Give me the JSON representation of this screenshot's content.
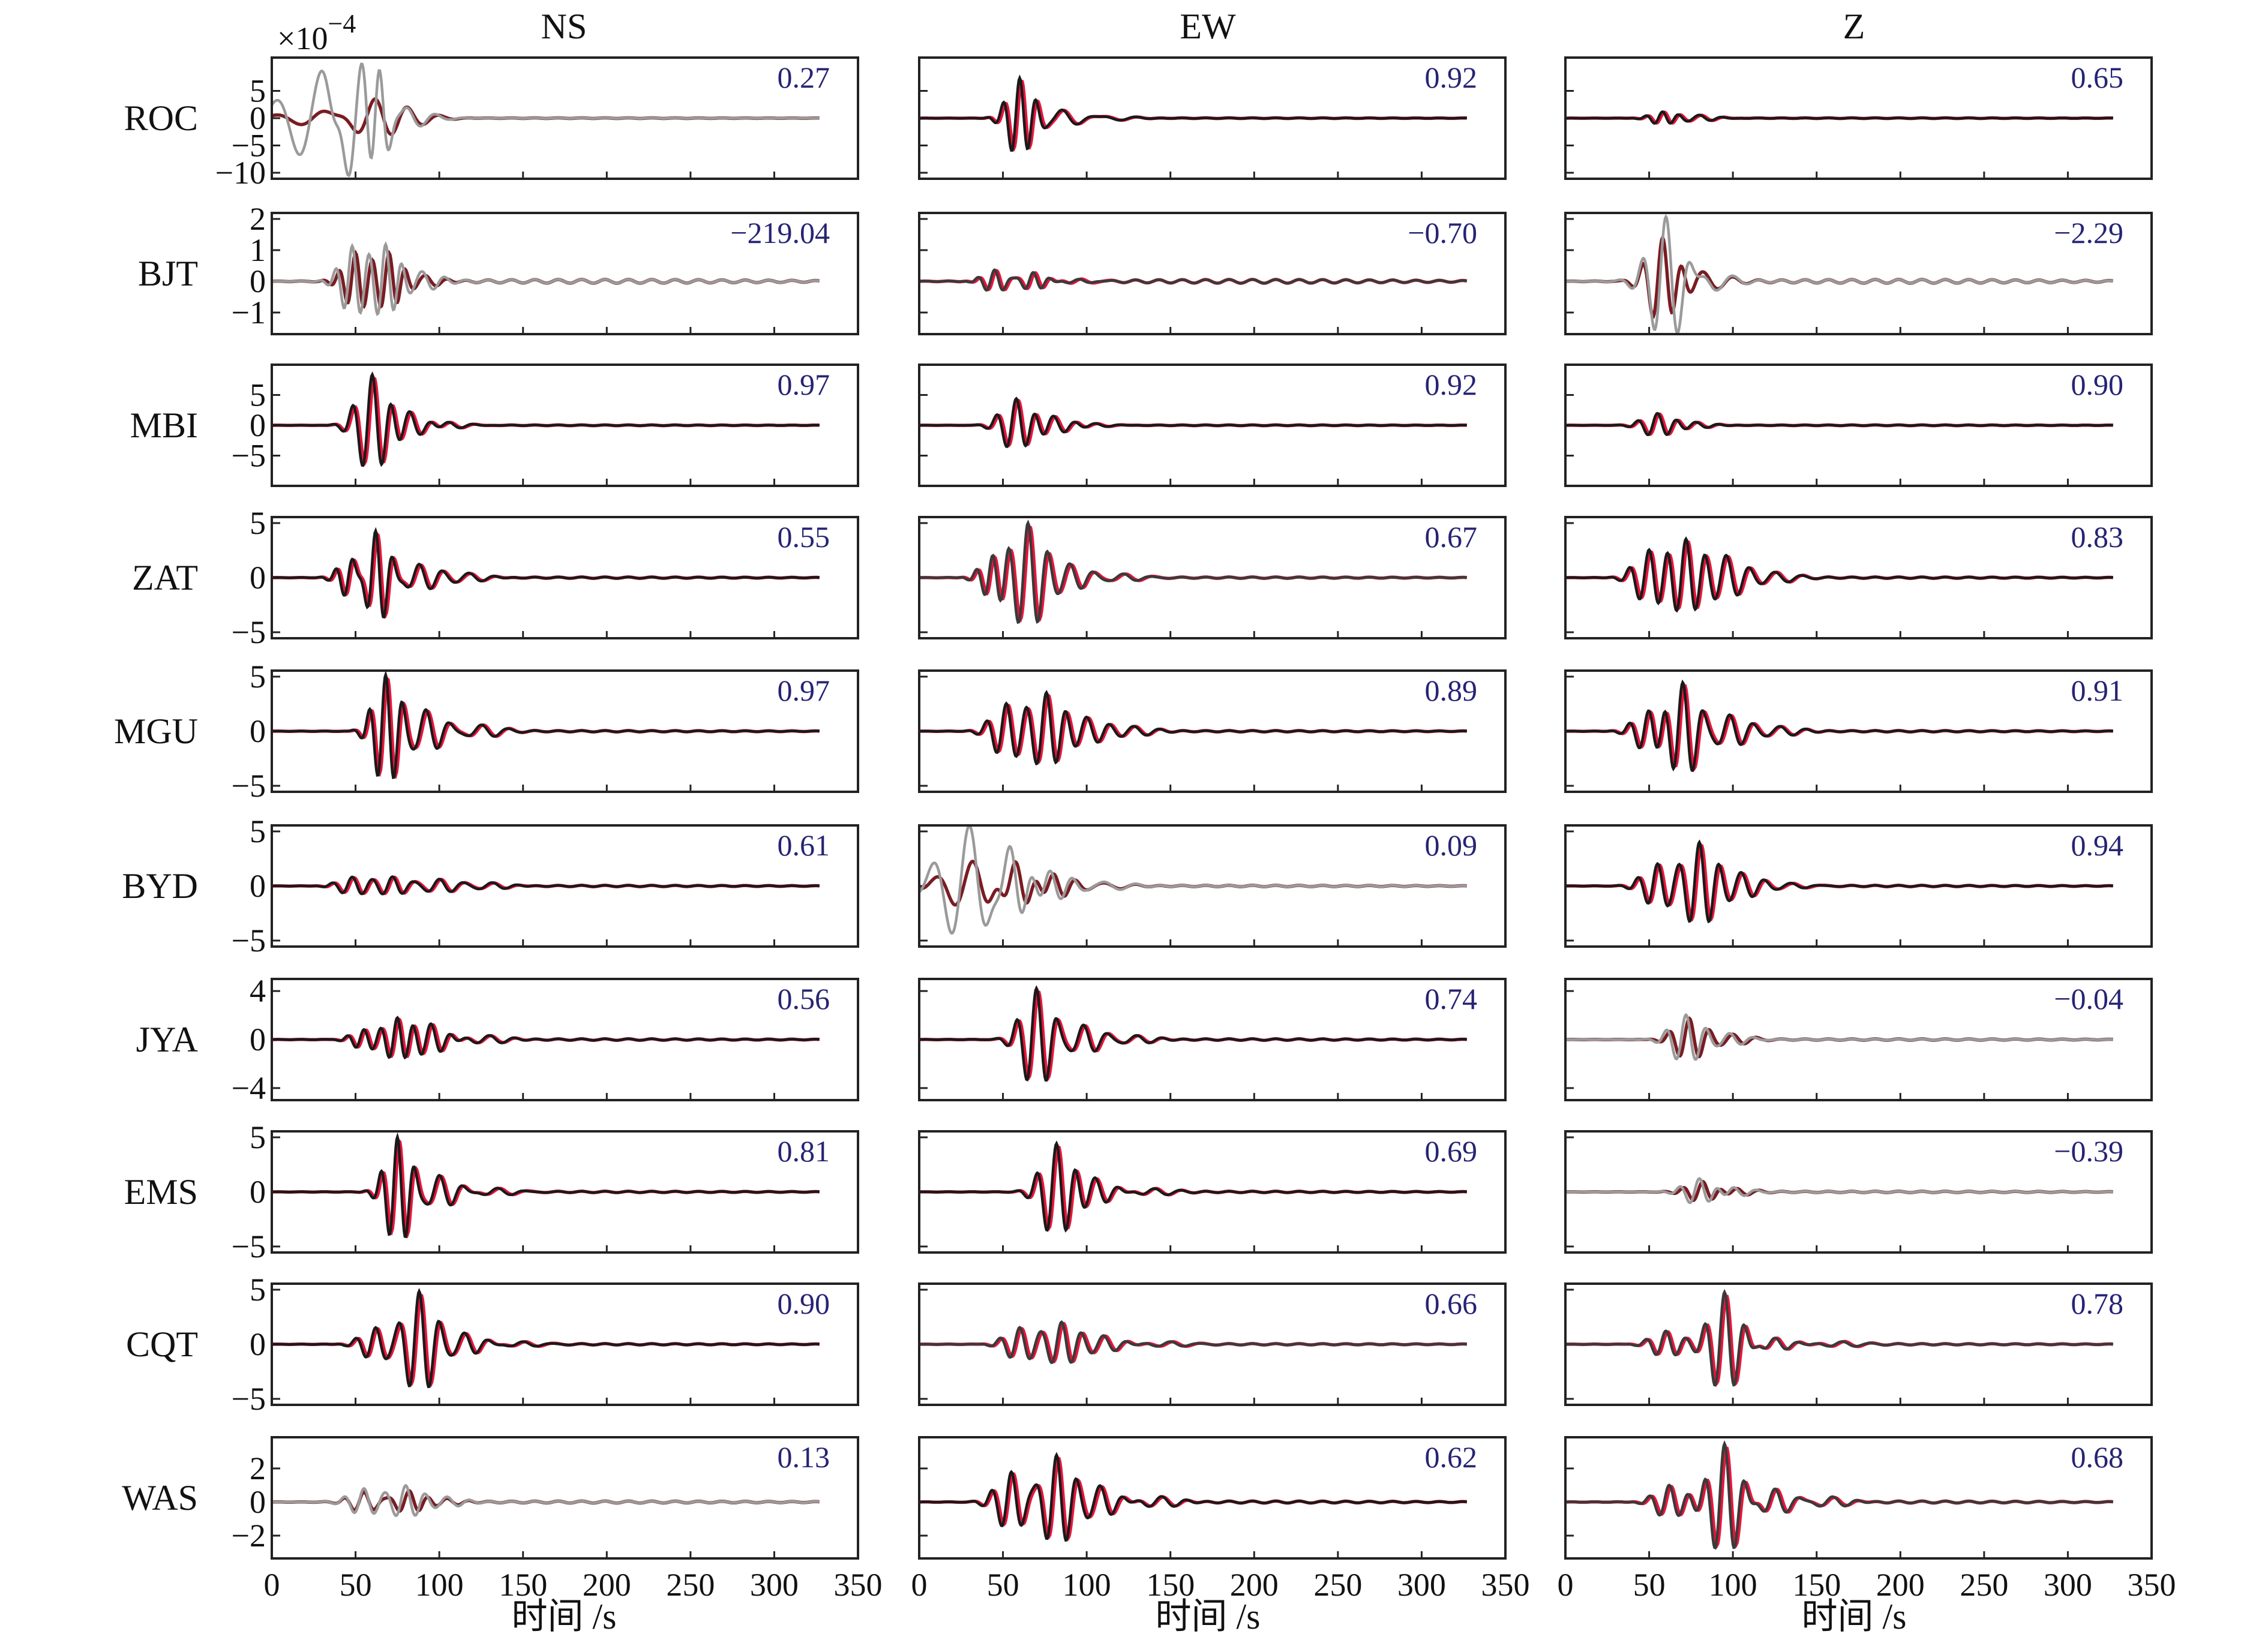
{
  "chart_data": {
    "type": "line",
    "columns": [
      "NS",
      "EW",
      "Z"
    ],
    "stations": [
      "ROC",
      "BJT",
      "MBI",
      "ZAT",
      "MGU",
      "BYD",
      "JYA",
      "EMS",
      "CQT",
      "WAS"
    ],
    "scale_factor": {
      "base": "×10",
      "exponent": "−4"
    },
    "xlabel": "时间 /s",
    "xlim": [
      0,
      350
    ],
    "xticks": [
      "0",
      "50",
      "100",
      "150",
      "200",
      "250",
      "300",
      "350"
    ],
    "x_end": 327,
    "grid": false,
    "rows": [
      {
        "station": "ROC",
        "ylim": [
          -10,
          10
        ],
        "yticks": [
          {
            "v": 5,
            "t": "5"
          },
          {
            "v": 0,
            "t": "0"
          },
          {
            "v": -5,
            "t": "−5"
          },
          {
            "v": -10,
            "t": "−10"
          }
        ]
      },
      {
        "station": "BJT",
        "ylim": [
          -1.5,
          2
        ],
        "yticks": [
          {
            "v": 2,
            "t": "2"
          },
          {
            "v": 1,
            "t": "1"
          },
          {
            "v": 0,
            "t": "0"
          },
          {
            "v": -1,
            "t": "−1"
          }
        ]
      },
      {
        "station": "MBI",
        "ylim": [
          -9,
          9
        ],
        "yticks": [
          {
            "v": 5,
            "t": "5"
          },
          {
            "v": 0,
            "t": "0"
          },
          {
            "v": -5,
            "t": "−5"
          }
        ]
      },
      {
        "station": "ZAT",
        "ylim": [
          -5,
          5
        ],
        "yticks": [
          {
            "v": 5,
            "t": "5"
          },
          {
            "v": 0,
            "t": "0"
          },
          {
            "v": -5,
            "t": "−5"
          }
        ]
      },
      {
        "station": "MGU",
        "ylim": [
          -5,
          5
        ],
        "yticks": [
          {
            "v": 5,
            "t": "5"
          },
          {
            "v": 0,
            "t": "0"
          },
          {
            "v": -5,
            "t": "−5"
          }
        ]
      },
      {
        "station": "BYD",
        "ylim": [
          -5,
          5
        ],
        "yticks": [
          {
            "v": 5,
            "t": "5"
          },
          {
            "v": 0,
            "t": "0"
          },
          {
            "v": -5,
            "t": "−5"
          }
        ]
      },
      {
        "station": "JYA",
        "ylim": [
          -4.5,
          4.5
        ],
        "yticks": [
          {
            "v": 4,
            "t": "4"
          },
          {
            "v": 0,
            "t": "0"
          },
          {
            "v": -4,
            "t": "−4"
          }
        ]
      },
      {
        "station": "EMS",
        "ylim": [
          -5,
          5
        ],
        "yticks": [
          {
            "v": 5,
            "t": "5"
          },
          {
            "v": 0,
            "t": "0"
          },
          {
            "v": -5,
            "t": "−5"
          }
        ]
      },
      {
        "station": "CQT",
        "ylim": [
          -5,
          5
        ],
        "yticks": [
          {
            "v": 5,
            "t": "5"
          },
          {
            "v": 0,
            "t": "0"
          },
          {
            "v": -5,
            "t": "−5"
          }
        ]
      },
      {
        "station": "WAS",
        "ylim": [
          -3,
          3.5
        ],
        "yticks": [
          {
            "v": 2,
            "t": "2"
          },
          {
            "v": 0,
            "t": "0"
          },
          {
            "v": -2,
            "t": "−2"
          }
        ]
      }
    ],
    "correlation_values": [
      [
        "0.27",
        "0.92",
        "0.65"
      ],
      [
        "−219.04",
        "−0.70",
        "−2.29"
      ],
      [
        "0.97",
        "0.92",
        "0.90"
      ],
      [
        "0.55",
        "0.67",
        "0.83"
      ],
      [
        "0.97",
        "0.89",
        "0.91"
      ],
      [
        "0.61",
        "0.09",
        "0.94"
      ],
      [
        "0.56",
        "0.74",
        "−0.04"
      ],
      [
        "0.81",
        "0.69",
        "−0.39"
      ],
      [
        "0.90",
        "0.66",
        "0.78"
      ],
      [
        "0.13",
        "0.62",
        "0.68"
      ]
    ],
    "waveforms": [
      [
        {
          "fit": "poor",
          "syn": [
            [
              30,
              8.5,
              28
            ],
            [
              52,
              7.5,
              12
            ],
            [
              60,
              -7,
              10
            ],
            [
              80,
              2,
              18
            ]
          ],
          "obs": [
            [
              32,
              1.5,
              30
            ],
            [
              62,
              2.5,
              20
            ],
            [
              80,
              1.2,
              20
            ]
          ]
        },
        {
          "fit": "good",
          "syn": [
            [
              60,
              7.5,
              10
            ],
            [
              85,
              1.5,
              18
            ],
            [
              110,
              0.5,
              20
            ]
          ]
        },
        {
          "fit": "good",
          "syn": [
            [
              58,
              1.2,
              10
            ],
            [
              80,
              0.6,
              14
            ]
          ]
        }
      ],
      [
        {
          "fit": "poor",
          "syn": [
            [
              48,
              1.1,
              10
            ],
            [
              68,
              1.2,
              10
            ],
            [
              90,
              0.3,
              14
            ]
          ],
          "obs": [
            [
              50,
              0.9,
              10
            ],
            [
              70,
              0.9,
              10
            ],
            [
              92,
              0.2,
              14
            ]
          ]
        },
        {
          "fit": "medium",
          "syn": [
            [
              45,
              0.35,
              10
            ],
            [
              68,
              0.3,
              10
            ],
            [
              95,
              0.1,
              14
            ]
          ]
        },
        {
          "fit": "poor",
          "syn": [
            [
              60,
              1.9,
              14
            ],
            [
              80,
              0.4,
              20
            ]
          ],
          "obs": [
            [
              58,
              1.4,
              12
            ],
            [
              82,
              0.3,
              18
            ]
          ]
        }
      ],
      [
        {
          "fit": "good",
          "syn": [
            [
              60,
              8.5,
              12
            ],
            [
              82,
              2.2,
              14
            ],
            [
              105,
              0.6,
              16
            ]
          ]
        },
        {
          "fit": "good",
          "syn": [
            [
              58,
              4.5,
              12
            ],
            [
              80,
              1.5,
              14
            ],
            [
              105,
              0.3,
              16
            ]
          ]
        },
        {
          "fit": "good",
          "syn": [
            [
              55,
              2.0,
              12
            ],
            [
              78,
              0.5,
              14
            ]
          ]
        }
      ],
      [
        {
          "fit": "good",
          "syn": [
            [
              48,
              2.2,
              10
            ],
            [
              62,
              4.5,
              10
            ],
            [
              88,
              1.2,
              14
            ],
            [
              118,
              0.4,
              16
            ]
          ]
        },
        {
          "fit": "medium",
          "syn": [
            [
              44,
              2.0,
              10
            ],
            [
              65,
              5.0,
              12
            ],
            [
              90,
              1.2,
              14
            ],
            [
              122,
              0.4,
              16
            ]
          ]
        },
        {
          "fit": "good",
          "syn": [
            [
              50,
              2.5,
              12
            ],
            [
              72,
              3.5,
              12
            ],
            [
              96,
              2.0,
              14
            ],
            [
              125,
              0.5,
              16
            ]
          ]
        }
      ],
      [
        {
          "fit": "good",
          "syn": [
            [
              68,
              5.2,
              10
            ],
            [
              92,
              2.0,
              14
            ],
            [
              125,
              0.6,
              16
            ]
          ]
        },
        {
          "fit": "good",
          "syn": [
            [
              52,
              2.5,
              12
            ],
            [
              76,
              3.5,
              12
            ],
            [
              100,
              1.2,
              14
            ],
            [
              128,
              0.4,
              16
            ]
          ]
        },
        {
          "fit": "good",
          "syn": [
            [
              50,
              2.0,
              12
            ],
            [
              70,
              4.5,
              12
            ],
            [
              98,
              1.5,
              14
            ],
            [
              128,
              0.4,
              16
            ]
          ]
        }
      ],
      [
        {
          "fit": "good",
          "syn": [
            [
              48,
              0.8,
              12
            ],
            [
              72,
              0.8,
              12
            ],
            [
              100,
              0.6,
              14
            ],
            [
              132,
              0.3,
              16
            ]
          ]
        },
        {
          "fit": "poor",
          "syn": [
            [
              30,
              5.5,
              22
            ],
            [
              55,
              2.5,
              14
            ],
            [
              78,
              1.5,
              14
            ],
            [
              110,
              0.4,
              20
            ]
          ],
          "obs": [
            [
              32,
              2.2,
              22
            ],
            [
              58,
              2.0,
              14
            ],
            [
              80,
              1.3,
              14
            ],
            [
              110,
              0.3,
              20
            ]
          ]
        },
        {
          "fit": "good",
          "syn": [
            [
              55,
              2.0,
              12
            ],
            [
              80,
              4.0,
              12
            ],
            [
              105,
              1.2,
              14
            ],
            [
              135,
              0.3,
              16
            ]
          ]
        }
      ],
      [
        {
          "fit": "good",
          "syn": [
            [
              55,
              0.8,
              10
            ],
            [
              75,
              1.8,
              10
            ],
            [
              95,
              1.3,
              12
            ],
            [
              130,
              0.3,
              16
            ]
          ]
        },
        {
          "fit": "good",
          "syn": [
            [
              70,
              4.2,
              12
            ],
            [
              98,
              1.2,
              14
            ],
            [
              130,
              0.3,
              16
            ]
          ]
        },
        {
          "fit": "poor",
          "syn": [
            [
              72,
              2.0,
              12
            ],
            [
              98,
              0.5,
              14
            ]
          ],
          "obs": [
            [
              74,
              1.7,
              12
            ],
            [
              100,
              0.4,
              14
            ]
          ]
        }
      ],
      [
        {
          "fit": "good",
          "syn": [
            [
              75,
              5.0,
              10
            ],
            [
              100,
              1.5,
              14
            ],
            [
              135,
              0.4,
              16
            ]
          ]
        },
        {
          "fit": "good",
          "syn": [
            [
              82,
              4.5,
              12
            ],
            [
              105,
              1.2,
              14
            ],
            [
              140,
              0.3,
              16
            ]
          ]
        },
        {
          "fit": "poor",
          "syn": [
            [
              80,
              1.3,
              12
            ],
            [
              100,
              0.4,
              14
            ]
          ],
          "obs": [
            [
              82,
              1.0,
              12
            ],
            [
              102,
              0.3,
              14
            ]
          ]
        }
      ],
      [
        {
          "fit": "good",
          "syn": [
            [
              62,
              1.5,
              12
            ],
            [
              88,
              4.8,
              12
            ],
            [
              115,
              1.0,
              14
            ],
            [
              150,
              0.3,
              16
            ]
          ]
        },
        {
          "fit": "medium",
          "syn": [
            [
              60,
              1.5,
              12
            ],
            [
              85,
              2.0,
              12
            ],
            [
              110,
              0.8,
              14
            ],
            [
              150,
              0.3,
              16
            ]
          ]
        },
        {
          "fit": "medium",
          "syn": [
            [
              60,
              1.2,
              12
            ],
            [
              95,
              4.8,
              12
            ],
            [
              125,
              0.6,
              14
            ],
            [
              165,
              0.3,
              16
            ]
          ]
        }
      ],
      [
        {
          "fit": "poor",
          "syn": [
            [
              55,
              0.8,
              12
            ],
            [
              80,
              1.0,
              12
            ],
            [
              105,
              0.3,
              14
            ]
          ],
          "obs": [
            [
              55,
              0.6,
              12
            ],
            [
              82,
              0.7,
              12
            ],
            [
              105,
              0.2,
              14
            ]
          ]
        },
        {
          "fit": "good",
          "syn": [
            [
              55,
              1.8,
              12
            ],
            [
              82,
              2.8,
              12
            ],
            [
              108,
              1.0,
              14
            ],
            [
              145,
              0.3,
              16
            ]
          ]
        },
        {
          "fit": "medium",
          "syn": [
            [
              62,
              1.0,
              12
            ],
            [
              95,
              3.5,
              12
            ],
            [
              125,
              0.8,
              14
            ],
            [
              160,
              0.3,
              16
            ]
          ]
        }
      ]
    ]
  },
  "colors": {
    "synthetic_good": "#1a1a1a",
    "synthetic_medium": "#3a3a3a",
    "synthetic_poor": "#9a9a9a",
    "observed": "#e8163c",
    "observed_poor": "#7a1c22",
    "correlation_text": "#262474",
    "frame": "#222222",
    "text": "#111111"
  }
}
